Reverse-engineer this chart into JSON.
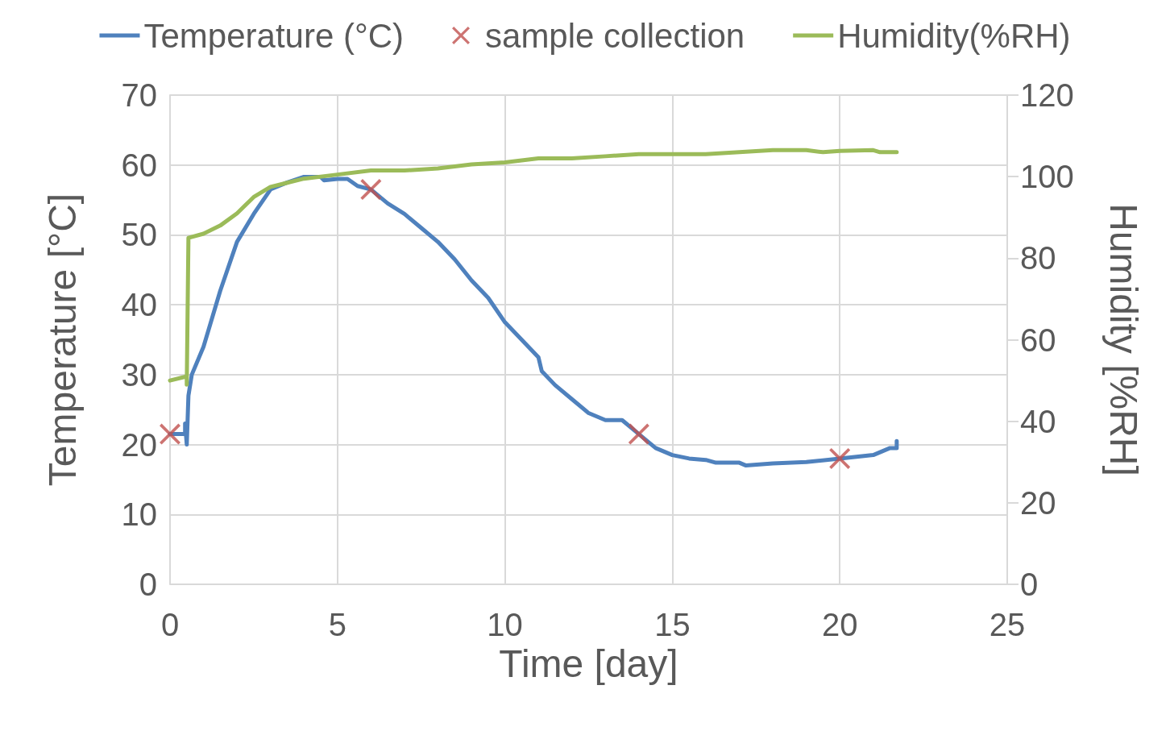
{
  "chart_data": {
    "type": "line",
    "xlabel": "Time [day]",
    "ylabel": "Temperature [°C]",
    "y2label": "Humidity [%RH]",
    "xlim": [
      0,
      25
    ],
    "xticks": [
      0,
      5,
      10,
      15,
      20,
      25
    ],
    "ylim": [
      0,
      70
    ],
    "yticks": [
      0,
      10,
      20,
      30,
      40,
      50,
      60,
      70
    ],
    "y2lim": [
      0,
      120
    ],
    "y2ticks": [
      0,
      20,
      40,
      60,
      80,
      100,
      120
    ],
    "grid": true,
    "legend": "top",
    "series": [
      {
        "name": "Temperature (°C)",
        "type": "line",
        "color": "#4f81bd",
        "marker": "none",
        "x": [
          0,
          0.45,
          0.45,
          0.5,
          0.55,
          0.65,
          1,
          1.5,
          2,
          2.5,
          3,
          3.5,
          4,
          4.5,
          4.6,
          5,
          5.3,
          5.6,
          6,
          6.5,
          7,
          7.5,
          8,
          8.5,
          9,
          9.5,
          10,
          10.5,
          11,
          11.1,
          11.5,
          12,
          12.5,
          13,
          13.5,
          14,
          14.5,
          15,
          15.5,
          16,
          16.3,
          17,
          17.2,
          18,
          19,
          20,
          21,
          21.5,
          21.7,
          21.7
        ],
        "values": [
          21.5,
          21.5,
          23,
          20,
          27,
          30,
          34,
          42,
          49,
          53,
          56.5,
          57.5,
          58.3,
          58.3,
          57.8,
          58,
          58,
          57,
          56.5,
          54.5,
          53,
          51,
          49,
          46.5,
          43.5,
          41,
          37.5,
          35,
          32.5,
          30.5,
          28.5,
          26.5,
          24.5,
          23.5,
          23.5,
          21.5,
          19.5,
          18.5,
          18,
          17.8,
          17.4,
          17.4,
          17,
          17.3,
          17.5,
          18,
          18.5,
          19.5,
          19.5,
          20.5
        ]
      },
      {
        "name": "sample collection",
        "type": "scatter",
        "color": "#c0504d",
        "marker": "cross",
        "x": [
          0,
          6,
          14,
          20
        ],
        "values": [
          21.5,
          56.5,
          21.5,
          18
        ]
      },
      {
        "name": "Humidity(%RH)",
        "type": "line",
        "axis": "y2",
        "color": "#9bbb59",
        "marker": "none",
        "x": [
          0,
          0.5,
          0.5,
          0.55,
          1,
          1.5,
          2,
          2.5,
          3,
          3.5,
          4,
          5,
          6,
          7,
          8,
          9,
          10,
          11,
          12,
          13,
          14,
          15,
          16,
          17,
          18,
          19,
          19.5,
          20,
          21,
          21.2,
          21.7
        ],
        "values": [
          50,
          51,
          49,
          85,
          86,
          88,
          91,
          95,
          97.5,
          98.5,
          99.5,
          100.5,
          101.5,
          101.5,
          102,
          103,
          103.5,
          104.5,
          104.5,
          105,
          105.5,
          105.5,
          105.5,
          106,
          106.5,
          106.5,
          106,
          106.3,
          106.5,
          106,
          106
        ]
      }
    ]
  }
}
